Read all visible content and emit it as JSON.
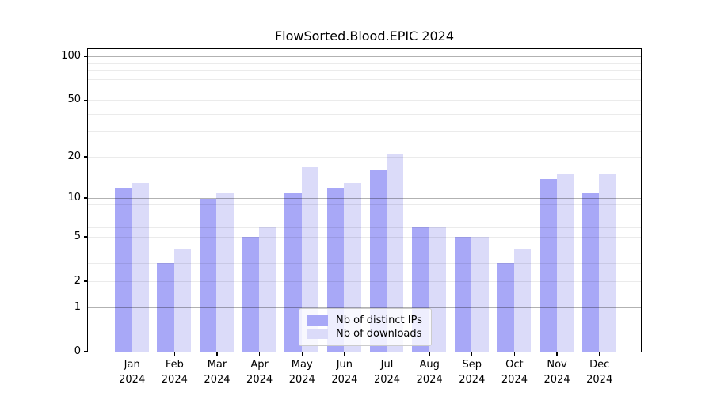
{
  "title": "FlowSorted.Blood.EPIC 2024",
  "chart_data": {
    "type": "bar",
    "title": "FlowSorted.Blood.EPIC 2024",
    "xlabel": "",
    "ylabel": "",
    "categories": [
      "Jan 2024",
      "Feb 2024",
      "Mar 2024",
      "Apr 2024",
      "May 2024",
      "Jun 2024",
      "Jul 2024",
      "Aug 2024",
      "Sep 2024",
      "Oct 2024",
      "Nov 2024",
      "Dec 2024"
    ],
    "series": [
      {
        "name": "Nb of distinct IPs",
        "color": "#a8a8f7",
        "values": [
          12,
          3,
          10,
          5,
          11,
          12,
          16,
          6,
          5,
          3,
          14,
          11
        ]
      },
      {
        "name": "Nb of downloads",
        "color": "#dbdbf9",
        "values": [
          13,
          4,
          11,
          6,
          17,
          13,
          21,
          6,
          5,
          4,
          15,
          15
        ]
      }
    ],
    "yscale": "log1p",
    "ylim": [
      0,
      113
    ],
    "yticks": [
      0,
      1,
      2,
      5,
      10,
      20,
      50,
      100
    ],
    "major_gridlines": [
      1,
      10,
      100
    ],
    "minor_gridlines": [
      2,
      3,
      4,
      5,
      6,
      7,
      8,
      9,
      20,
      30,
      40,
      50,
      60,
      70,
      80,
      90
    ],
    "grid": true,
    "legend": {
      "position": "lower center",
      "entries": [
        "Nb of distinct IPs",
        "Nb of downloads"
      ]
    }
  }
}
